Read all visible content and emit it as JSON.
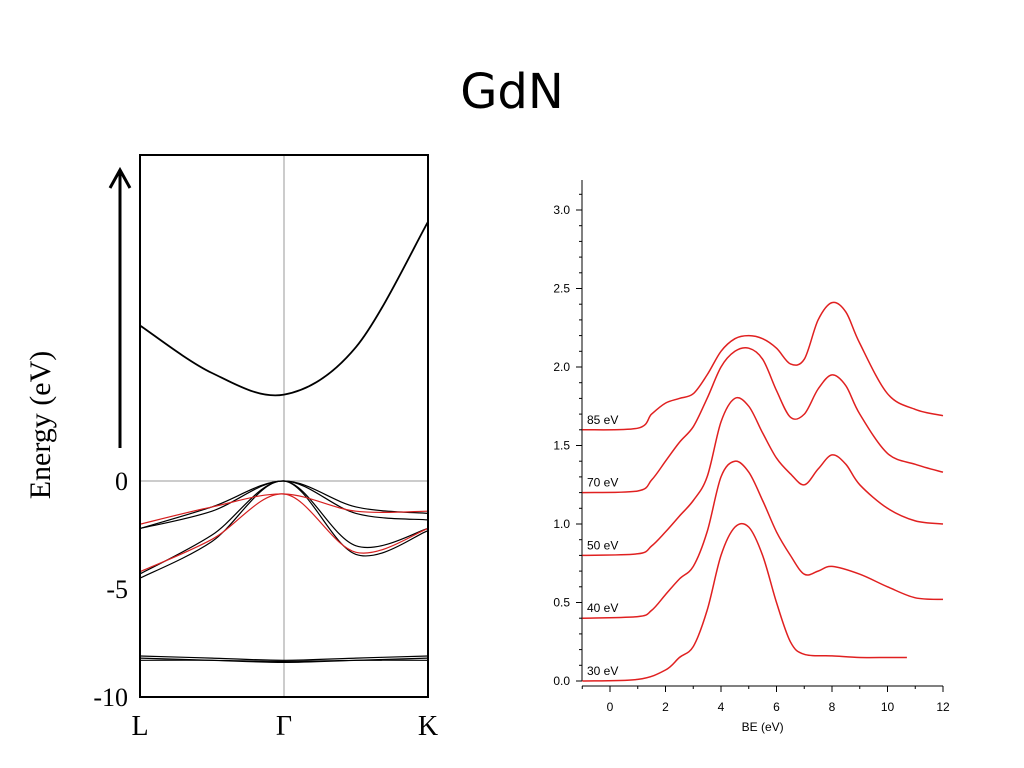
{
  "title": "GdN",
  "chart_data": [
    {
      "type": "line",
      "chart": "band structure",
      "title": "",
      "ylabel": "Energy (eV)",
      "xlabel": "",
      "x_ticks": [
        "L",
        "Γ",
        "K"
      ],
      "y_ticks": [
        0,
        -5,
        -10
      ],
      "ylim": [
        -10,
        10
      ],
      "has_up_arrow": true,
      "reference_lines": [
        {
          "axis": "y",
          "value": 0,
          "color": "#999999"
        },
        {
          "axis": "x",
          "value": "Γ",
          "color": "#999999"
        }
      ],
      "series": [
        {
          "color": "#000000",
          "points": [
            [
              0,
              7.2
            ],
            [
              0.25,
              5.0
            ],
            [
              0.5,
              4.0
            ],
            [
              0.75,
              6.2
            ],
            [
              1.0,
              12.0
            ]
          ]
        },
        {
          "color": "#000000",
          "points": [
            [
              0,
              -2.2
            ],
            [
              0.25,
              -1.2
            ],
            [
              0.5,
              0.0
            ],
            [
              0.75,
              -1.2
            ],
            [
              1.0,
              -1.5
            ]
          ]
        },
        {
          "color": "#000000",
          "points": [
            [
              0,
              -2.2
            ],
            [
              0.25,
              -1.4
            ],
            [
              0.5,
              0.0
            ],
            [
              0.75,
              -1.5
            ],
            [
              1.0,
              -1.8
            ]
          ]
        },
        {
          "color": "#000000",
          "points": [
            [
              0,
              -4.5
            ],
            [
              0.25,
              -2.8
            ],
            [
              0.5,
              0.0
            ],
            [
              0.75,
              -3.4
            ],
            [
              1.0,
              -2.3
            ]
          ]
        },
        {
          "color": "#000000",
          "points": [
            [
              0,
              -4.3
            ],
            [
              0.25,
              -2.5
            ],
            [
              0.5,
              0.0
            ],
            [
              0.75,
              -3.0
            ],
            [
              1.0,
              -2.2
            ]
          ]
        },
        {
          "color": "#d62020",
          "points": [
            [
              0,
              -2.0
            ],
            [
              0.25,
              -1.2
            ],
            [
              0.5,
              -0.6
            ],
            [
              0.75,
              -1.4
            ],
            [
              1.0,
              -1.4
            ]
          ]
        },
        {
          "color": "#d62020",
          "points": [
            [
              0,
              -4.2
            ],
            [
              0.25,
              -2.7
            ],
            [
              0.5,
              -0.6
            ],
            [
              0.75,
              -3.3
            ],
            [
              1.0,
              -2.2
            ]
          ]
        },
        {
          "color": "#000000",
          "points": [
            [
              0,
              -8.1
            ],
            [
              0.25,
              -8.2
            ],
            [
              0.5,
              -8.3
            ],
            [
              0.75,
              -8.2
            ],
            [
              1.0,
              -8.1
            ]
          ]
        },
        {
          "color": "#000000",
          "points": [
            [
              0,
              -8.2
            ],
            [
              0.25,
              -8.3
            ],
            [
              0.5,
              -8.4
            ],
            [
              0.75,
              -8.3
            ],
            [
              1.0,
              -8.2
            ]
          ]
        },
        {
          "color": "#000000",
          "points": [
            [
              0,
              -8.3
            ],
            [
              0.25,
              -8.3
            ],
            [
              0.5,
              -8.35
            ],
            [
              0.75,
              -8.3
            ],
            [
              1.0,
              -8.3
            ]
          ]
        }
      ]
    },
    {
      "type": "line",
      "chart": "photoemission spectra",
      "title": "",
      "xlabel": "BE (eV)",
      "ylabel": "",
      "xlim": [
        -1,
        12
      ],
      "ylim": [
        0,
        3.2
      ],
      "x_ticks": [
        0,
        2,
        4,
        6,
        8,
        10,
        12
      ],
      "y_ticks": [
        "0.0",
        "0.5",
        "1.0",
        "1.5",
        "2.0",
        "2.5",
        "3.0"
      ],
      "color": "#e02020",
      "series": [
        {
          "name": "30 eV",
          "x": [
            -1,
            1,
            2,
            2.5,
            3,
            3.5,
            4,
            4.5,
            5,
            5.5,
            6,
            6.5,
            7,
            8,
            9,
            10,
            10.7
          ],
          "y": [
            0.0,
            0.01,
            0.07,
            0.15,
            0.22,
            0.45,
            0.8,
            0.98,
            0.98,
            0.8,
            0.5,
            0.25,
            0.17,
            0.16,
            0.15,
            0.15,
            0.15
          ]
        },
        {
          "name": "40 eV",
          "x": [
            -1,
            1,
            1.5,
            2,
            2.5,
            3,
            3.5,
            4,
            4.5,
            5,
            5.5,
            6,
            6.5,
            7,
            7.5,
            8,
            9,
            10,
            11,
            12
          ],
          "y": [
            0.4,
            0.41,
            0.45,
            0.55,
            0.65,
            0.73,
            0.95,
            1.3,
            1.4,
            1.33,
            1.15,
            0.95,
            0.8,
            0.68,
            0.7,
            0.73,
            0.68,
            0.6,
            0.53,
            0.52
          ]
        },
        {
          "name": "50 eV",
          "x": [
            -1,
            1,
            1.5,
            2,
            2.5,
            3,
            3.5,
            4,
            4.5,
            5,
            5.5,
            6,
            6.5,
            7,
            7.5,
            8,
            8.5,
            9,
            10,
            11,
            12
          ],
          "y": [
            0.8,
            0.81,
            0.86,
            0.95,
            1.05,
            1.15,
            1.3,
            1.65,
            1.8,
            1.75,
            1.58,
            1.42,
            1.32,
            1.25,
            1.35,
            1.44,
            1.38,
            1.25,
            1.1,
            1.02,
            1.0
          ]
        },
        {
          "name": "70 eV",
          "x": [
            -1,
            1,
            1.5,
            2,
            2.5,
            3,
            3.5,
            4,
            4.5,
            5,
            5.5,
            6,
            6.5,
            7,
            7.5,
            8,
            8.5,
            9,
            10,
            11,
            12
          ],
          "y": [
            1.2,
            1.21,
            1.28,
            1.4,
            1.52,
            1.62,
            1.8,
            2.0,
            2.1,
            2.12,
            2.05,
            1.85,
            1.68,
            1.7,
            1.86,
            1.95,
            1.88,
            1.7,
            1.45,
            1.38,
            1.33
          ]
        },
        {
          "name": "85 eV",
          "x": [
            -1,
            1,
            1.5,
            2,
            2.5,
            3,
            3.5,
            4,
            4.5,
            5,
            5.5,
            6,
            6.5,
            7,
            7.5,
            8,
            8.5,
            9,
            10,
            11,
            12
          ],
          "y": [
            1.6,
            1.61,
            1.7,
            1.77,
            1.8,
            1.83,
            1.95,
            2.1,
            2.18,
            2.2,
            2.18,
            2.12,
            2.02,
            2.05,
            2.3,
            2.41,
            2.35,
            2.15,
            1.83,
            1.73,
            1.69
          ]
        }
      ]
    }
  ]
}
